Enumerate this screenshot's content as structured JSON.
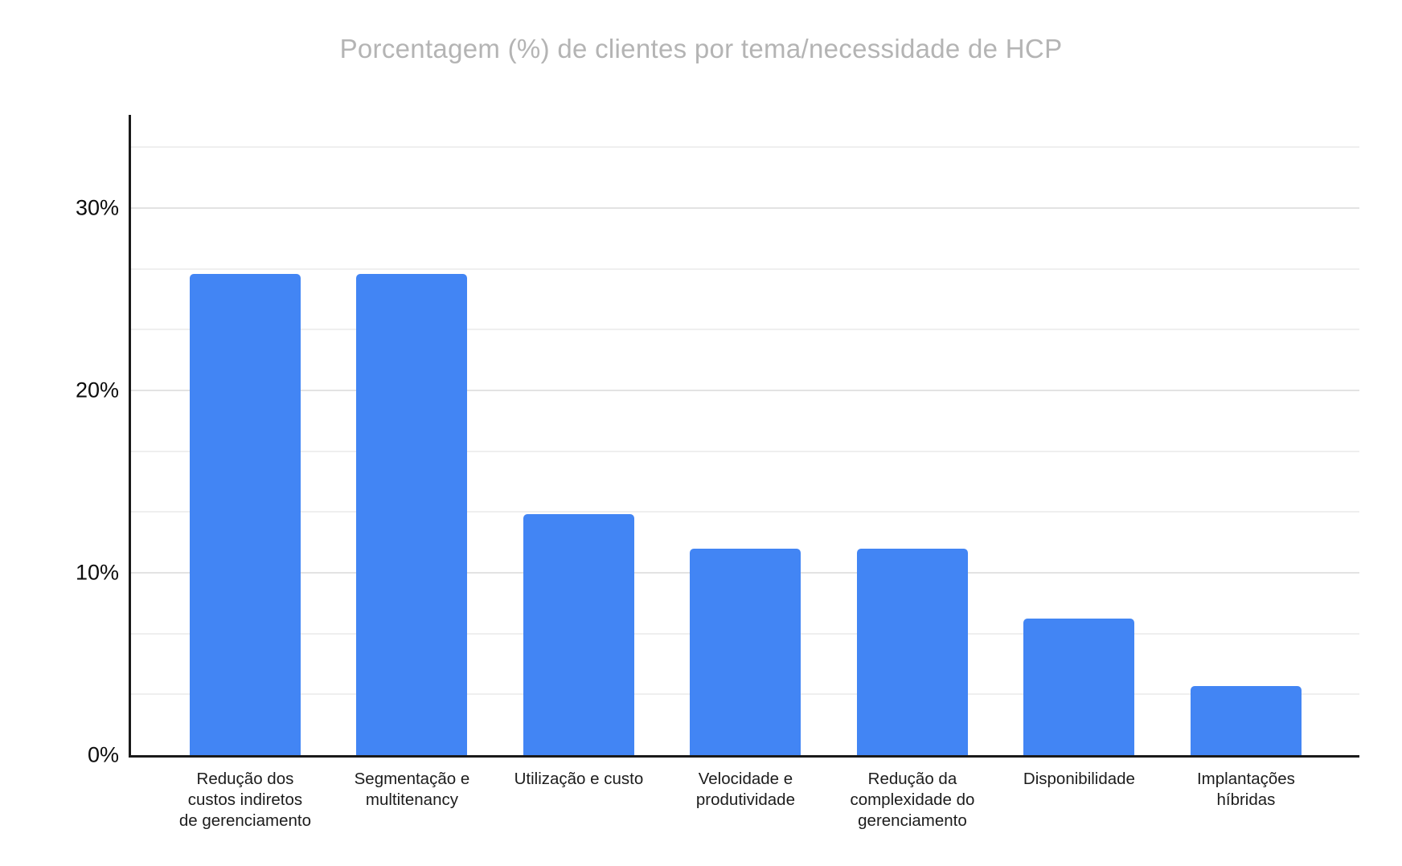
{
  "chart_data": {
    "type": "bar",
    "title": "Porcentagem (%) de clientes por tema/necessidade de HCP",
    "categories": [
      "Redução dos custos indiretos de gerenciamento",
      "Segmentação e multitenancy",
      "Utilização e custo",
      "Velocidade e produtividade",
      "Redução da complexidade do gerenciamento",
      "Disponibilidade",
      "Implantações híbridas"
    ],
    "label_lines": [
      [
        "Redução dos",
        "custos indiretos",
        "de gerenciamento"
      ],
      [
        "Segmentação e",
        "multitenancy"
      ],
      [
        "Utilização e custo"
      ],
      [
        "Velocidade e",
        "produtividade"
      ],
      [
        "Redução da",
        "complexidade do",
        "gerenciamento"
      ],
      [
        "Disponibilidade"
      ],
      [
        "Implantações",
        "híbridas"
      ]
    ],
    "values": [
      26.4,
      26.4,
      13.2,
      11.3,
      11.3,
      7.5,
      3.8
    ],
    "unit": "%",
    "xlabel": "",
    "ylabel": "",
    "ylim": [
      0,
      35
    ],
    "yticks": [
      {
        "value": 0,
        "label": "0%"
      },
      {
        "value": 10,
        "label": "10%"
      },
      {
        "value": 20,
        "label": "20%"
      },
      {
        "value": 30,
        "label": "30%"
      }
    ],
    "minor_gridline_step": 3.333,
    "grid": true,
    "legend": "none",
    "bar_color": "#4285f4"
  },
  "colors": {
    "background": "#ffffff",
    "title": "#b4b4b4",
    "axis_line": "#1a1a1a",
    "tick_label": "#0c0c0c",
    "category_label": "#1c1c1c",
    "gridline_minor": "#efefef",
    "gridline_major": "#e3e3e3",
    "bar": "#4285f4"
  }
}
